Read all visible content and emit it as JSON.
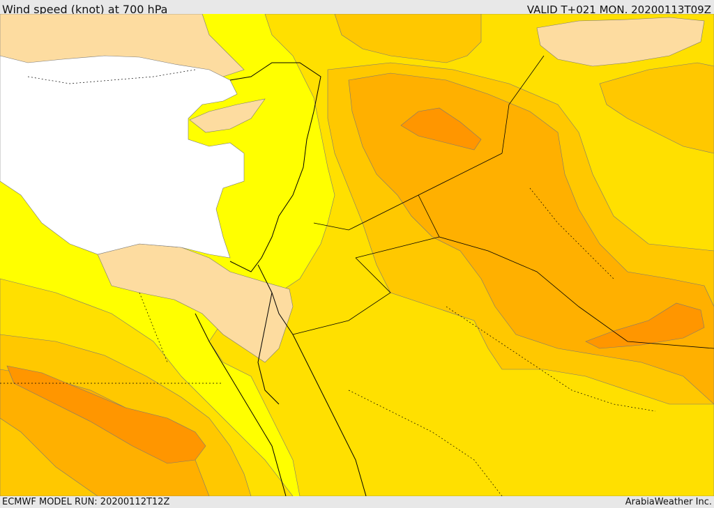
{
  "header": {
    "title": "Wind speed (knot) at 700 hPa",
    "valid": "VALID T+021 MON. 20200113T09Z"
  },
  "footer": {
    "model_run": "ECMWF MODEL RUN: 20200112T12Z",
    "credit": "ArabiaWeather Inc."
  },
  "colors": {
    "sea_no_data": "#ffffff",
    "light_peach": "#fddca0",
    "yellow": "#ffff00",
    "gold": "#ffe000",
    "light_orange": "#ffc800",
    "orange": "#ffb000",
    "dark_orange": "#ff9600"
  }
}
